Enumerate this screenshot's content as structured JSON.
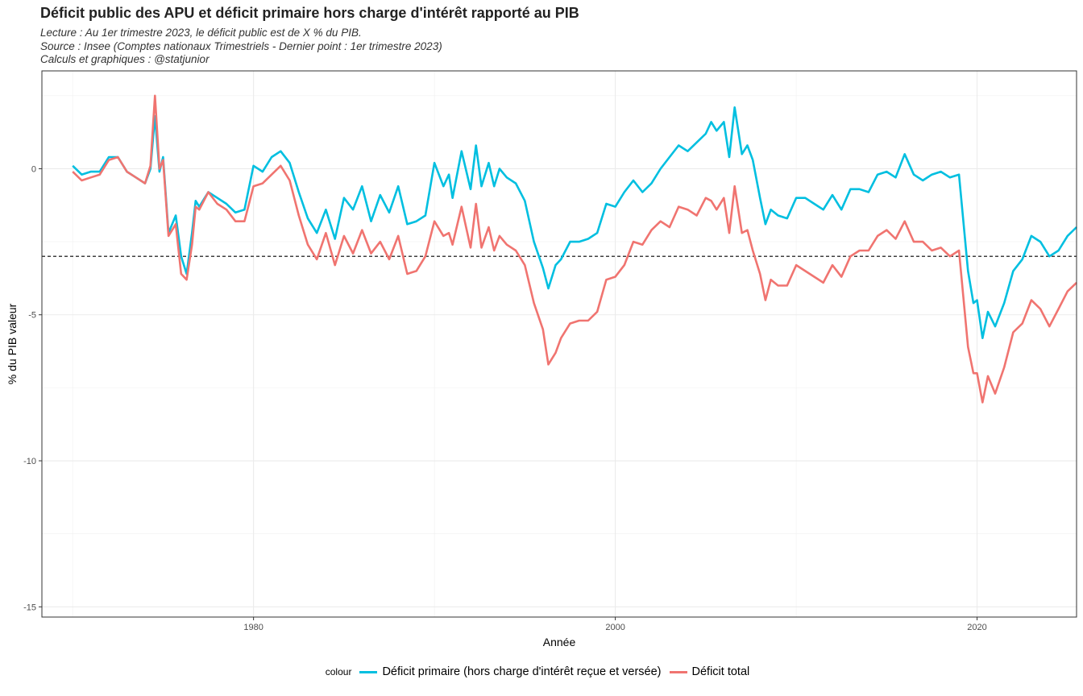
{
  "header": {
    "title": "Déficit public des APU et déficit primaire hors charge d'intérêt rapporté au PIB",
    "subtitle_lines": [
      "Lecture : Au 1er trimestre 2023, le déficit public est de X % du PIB.",
      "Source : Insee (Comptes nationaux Trimestriels - Dernier point : 1er trimestre 2023)",
      "Calculs et graphiques : @statjunior"
    ]
  },
  "legend": {
    "title": "colour",
    "entries": [
      {
        "label": "Déficit primaire (hors charge d'intérêt reçue et versée)",
        "color": "#00bfe0"
      },
      {
        "label": "Déficit total",
        "color": "#f07470"
      }
    ]
  },
  "chart_data": {
    "type": "line",
    "xlabel": "Année",
    "ylabel": "% du PIB valeur",
    "xlim": [
      1968.3,
      2025.5
    ],
    "ylim": [
      -15.35,
      3.35
    ],
    "x_ticks": [
      1980,
      2000,
      2020
    ],
    "y_ticks": [
      0,
      -5,
      -10,
      -15
    ],
    "reference_line": {
      "y": -3,
      "style": "dashed",
      "color": "#000000"
    },
    "grid": true,
    "legend_position": "bottom",
    "series": [
      {
        "name": "Déficit primaire (hors charge d'intérêt reçue et versée)",
        "color": "#00bfe0",
        "points": [
          [
            1970.0,
            0.1
          ],
          [
            1970.5,
            -0.2
          ],
          [
            1971.0,
            -0.1
          ],
          [
            1971.5,
            -0.1
          ],
          [
            1972.0,
            0.4
          ],
          [
            1972.5,
            0.4
          ],
          [
            1973.0,
            -0.1
          ],
          [
            1973.5,
            -0.3
          ],
          [
            1974.0,
            -0.5
          ],
          [
            1974.3,
            0.0
          ],
          [
            1974.55,
            1.8
          ],
          [
            1974.8,
            -0.1
          ],
          [
            1975.0,
            0.4
          ],
          [
            1975.3,
            -2.2
          ],
          [
            1975.7,
            -1.6
          ],
          [
            1976.0,
            -3.0
          ],
          [
            1976.3,
            -3.6
          ],
          [
            1976.6,
            -2.2
          ],
          [
            1976.8,
            -1.1
          ],
          [
            1977.0,
            -1.3
          ],
          [
            1977.5,
            -0.8
          ],
          [
            1978.0,
            -1.0
          ],
          [
            1978.5,
            -1.2
          ],
          [
            1979.0,
            -1.5
          ],
          [
            1979.5,
            -1.4
          ],
          [
            1980.0,
            0.1
          ],
          [
            1980.5,
            -0.1
          ],
          [
            1981.0,
            0.4
          ],
          [
            1981.5,
            0.6
          ],
          [
            1982.0,
            0.2
          ],
          [
            1982.5,
            -0.8
          ],
          [
            1983.0,
            -1.7
          ],
          [
            1983.5,
            -2.2
          ],
          [
            1984.0,
            -1.4
          ],
          [
            1984.5,
            -2.4
          ],
          [
            1985.0,
            -1.0
          ],
          [
            1985.5,
            -1.4
          ],
          [
            1986.0,
            -0.6
          ],
          [
            1986.5,
            -1.8
          ],
          [
            1987.0,
            -0.9
          ],
          [
            1987.5,
            -1.5
          ],
          [
            1988.0,
            -0.6
          ],
          [
            1988.5,
            -1.9
          ],
          [
            1989.0,
            -1.8
          ],
          [
            1989.5,
            -1.6
          ],
          [
            1990.0,
            0.2
          ],
          [
            1990.5,
            -0.6
          ],
          [
            1990.8,
            -0.2
          ],
          [
            1991.0,
            -1.0
          ],
          [
            1991.5,
            0.6
          ],
          [
            1992.0,
            -0.7
          ],
          [
            1992.3,
            0.8
          ],
          [
            1992.6,
            -0.6
          ],
          [
            1993.0,
            0.2
          ],
          [
            1993.3,
            -0.6
          ],
          [
            1993.6,
            0.0
          ],
          [
            1994.0,
            -0.3
          ],
          [
            1994.5,
            -0.5
          ],
          [
            1995.0,
            -1.1
          ],
          [
            1995.5,
            -2.5
          ],
          [
            1996.0,
            -3.4
          ],
          [
            1996.3,
            -4.1
          ],
          [
            1996.7,
            -3.3
          ],
          [
            1997.0,
            -3.1
          ],
          [
            1997.5,
            -2.5
          ],
          [
            1998.0,
            -2.5
          ],
          [
            1998.5,
            -2.4
          ],
          [
            1999.0,
            -2.2
          ],
          [
            1999.5,
            -1.2
          ],
          [
            2000.0,
            -1.3
          ],
          [
            2000.5,
            -0.8
          ],
          [
            2001.0,
            -0.4
          ],
          [
            2001.5,
            -0.8
          ],
          [
            2002.0,
            -0.5
          ],
          [
            2002.5,
            0.0
          ],
          [
            2003.0,
            0.4
          ],
          [
            2003.5,
            0.8
          ],
          [
            2004.0,
            0.6
          ],
          [
            2004.5,
            0.9
          ],
          [
            2005.0,
            1.2
          ],
          [
            2005.3,
            1.6
          ],
          [
            2005.6,
            1.3
          ],
          [
            2006.0,
            1.6
          ],
          [
            2006.3,
            0.4
          ],
          [
            2006.6,
            2.1
          ],
          [
            2007.0,
            0.5
          ],
          [
            2007.3,
            0.8
          ],
          [
            2007.6,
            0.3
          ],
          [
            2008.0,
            -1.0
          ],
          [
            2008.3,
            -1.9
          ],
          [
            2008.6,
            -1.4
          ],
          [
            2009.0,
            -1.6
          ],
          [
            2009.5,
            -1.7
          ],
          [
            2010.0,
            -1.0
          ],
          [
            2010.5,
            -1.0
          ],
          [
            2011.0,
            -1.2
          ],
          [
            2011.5,
            -1.4
          ],
          [
            2012.0,
            -0.9
          ],
          [
            2012.5,
            -1.4
          ],
          [
            2013.0,
            -0.7
          ],
          [
            2013.5,
            -0.7
          ],
          [
            2014.0,
            -0.8
          ],
          [
            2014.5,
            -0.2
          ],
          [
            2015.0,
            -0.1
          ],
          [
            2015.5,
            -0.3
          ],
          [
            2016.0,
            0.5
          ],
          [
            2016.5,
            -0.2
          ],
          [
            2017.0,
            -0.4
          ],
          [
            2017.5,
            -0.2
          ],
          [
            2018.0,
            -0.1
          ],
          [
            2018.5,
            -0.3
          ],
          [
            2019.0,
            -0.2
          ],
          [
            2019.5,
            -3.5
          ],
          [
            2019.8,
            -4.6
          ],
          [
            2020.0,
            -4.5
          ],
          [
            2020.3,
            -5.8
          ],
          [
            2020.6,
            -4.9
          ],
          [
            2021.0,
            -5.4
          ],
          [
            2021.5,
            -4.6
          ],
          [
            2022.0,
            -3.5
          ],
          [
            2022.5,
            -3.1
          ],
          [
            2023.0,
            -2.3
          ],
          [
            2023.5,
            -2.5
          ],
          [
            2024.0,
            -3.0
          ],
          [
            2024.5,
            -2.8
          ],
          [
            2025.0,
            -2.3
          ],
          [
            2025.5,
            -2.0
          ]
        ]
      },
      {
        "name": "Déficit total",
        "color": "#f07470",
        "points": [
          [
            1970.0,
            -0.1
          ],
          [
            1970.5,
            -0.4
          ],
          [
            1971.0,
            -0.3
          ],
          [
            1971.5,
            -0.2
          ],
          [
            1972.0,
            0.3
          ],
          [
            1972.5,
            0.4
          ],
          [
            1973.0,
            -0.1
          ],
          [
            1973.5,
            -0.3
          ],
          [
            1974.0,
            -0.5
          ],
          [
            1974.3,
            0.1
          ],
          [
            1974.55,
            2.5
          ],
          [
            1974.8,
            0.0
          ],
          [
            1975.0,
            0.3
          ],
          [
            1975.3,
            -2.3
          ],
          [
            1975.7,
            -1.9
          ],
          [
            1976.0,
            -3.6
          ],
          [
            1976.3,
            -3.8
          ],
          [
            1976.6,
            -2.6
          ],
          [
            1976.8,
            -1.3
          ],
          [
            1977.0,
            -1.4
          ],
          [
            1977.5,
            -0.8
          ],
          [
            1978.0,
            -1.2
          ],
          [
            1978.5,
            -1.4
          ],
          [
            1979.0,
            -1.8
          ],
          [
            1979.5,
            -1.8
          ],
          [
            1980.0,
            -0.6
          ],
          [
            1980.5,
            -0.5
          ],
          [
            1981.0,
            -0.2
          ],
          [
            1981.5,
            0.1
          ],
          [
            1982.0,
            -0.4
          ],
          [
            1982.5,
            -1.6
          ],
          [
            1983.0,
            -2.6
          ],
          [
            1983.5,
            -3.1
          ],
          [
            1984.0,
            -2.2
          ],
          [
            1984.5,
            -3.3
          ],
          [
            1985.0,
            -2.3
          ],
          [
            1985.5,
            -2.9
          ],
          [
            1986.0,
            -2.1
          ],
          [
            1986.5,
            -2.9
          ],
          [
            1987.0,
            -2.5
          ],
          [
            1987.5,
            -3.1
          ],
          [
            1988.0,
            -2.3
          ],
          [
            1988.5,
            -3.6
          ],
          [
            1989.0,
            -3.5
          ],
          [
            1989.5,
            -3.0
          ],
          [
            1990.0,
            -1.8
          ],
          [
            1990.5,
            -2.3
          ],
          [
            1990.8,
            -2.2
          ],
          [
            1991.0,
            -2.6
          ],
          [
            1991.5,
            -1.3
          ],
          [
            1992.0,
            -2.7
          ],
          [
            1992.3,
            -1.2
          ],
          [
            1992.6,
            -2.7
          ],
          [
            1993.0,
            -2.0
          ],
          [
            1993.3,
            -2.8
          ],
          [
            1993.6,
            -2.3
          ],
          [
            1994.0,
            -2.6
          ],
          [
            1994.5,
            -2.8
          ],
          [
            1995.0,
            -3.3
          ],
          [
            1995.5,
            -4.6
          ],
          [
            1996.0,
            -5.5
          ],
          [
            1996.3,
            -6.7
          ],
          [
            1996.7,
            -6.3
          ],
          [
            1997.0,
            -5.8
          ],
          [
            1997.5,
            -5.3
          ],
          [
            1998.0,
            -5.2
          ],
          [
            1998.5,
            -5.2
          ],
          [
            1999.0,
            -4.9
          ],
          [
            1999.5,
            -3.8
          ],
          [
            2000.0,
            -3.7
          ],
          [
            2000.5,
            -3.3
          ],
          [
            2001.0,
            -2.5
          ],
          [
            2001.5,
            -2.6
          ],
          [
            2002.0,
            -2.1
          ],
          [
            2002.5,
            -1.8
          ],
          [
            2003.0,
            -2.0
          ],
          [
            2003.5,
            -1.3
          ],
          [
            2004.0,
            -1.4
          ],
          [
            2004.5,
            -1.6
          ],
          [
            2005.0,
            -1.0
          ],
          [
            2005.3,
            -1.1
          ],
          [
            2005.6,
            -1.4
          ],
          [
            2006.0,
            -1.0
          ],
          [
            2006.3,
            -2.2
          ],
          [
            2006.6,
            -0.6
          ],
          [
            2007.0,
            -2.2
          ],
          [
            2007.3,
            -2.1
          ],
          [
            2007.6,
            -2.8
          ],
          [
            2008.0,
            -3.6
          ],
          [
            2008.3,
            -4.5
          ],
          [
            2008.6,
            -3.8
          ],
          [
            2009.0,
            -4.0
          ],
          [
            2009.5,
            -4.0
          ],
          [
            2010.0,
            -3.3
          ],
          [
            2010.5,
            -3.5
          ],
          [
            2011.0,
            -3.7
          ],
          [
            2011.5,
            -3.9
          ],
          [
            2012.0,
            -3.3
          ],
          [
            2012.5,
            -3.7
          ],
          [
            2013.0,
            -3.0
          ],
          [
            2013.5,
            -2.8
          ],
          [
            2014.0,
            -2.8
          ],
          [
            2014.5,
            -2.3
          ],
          [
            2015.0,
            -2.1
          ],
          [
            2015.5,
            -2.4
          ],
          [
            2016.0,
            -1.8
          ],
          [
            2016.5,
            -2.5
          ],
          [
            2017.0,
            -2.5
          ],
          [
            2017.5,
            -2.8
          ],
          [
            2018.0,
            -2.7
          ],
          [
            2018.5,
            -3.0
          ],
          [
            2019.0,
            -2.8
          ],
          [
            2019.5,
            -6.1
          ],
          [
            2019.8,
            -7.0
          ],
          [
            2020.0,
            -7.0
          ],
          [
            2020.3,
            -8.0
          ],
          [
            2020.6,
            -7.1
          ],
          [
            2021.0,
            -7.7
          ],
          [
            2021.5,
            -6.8
          ],
          [
            2022.0,
            -5.6
          ],
          [
            2022.5,
            -5.3
          ],
          [
            2023.0,
            -4.5
          ],
          [
            2023.5,
            -4.8
          ],
          [
            2024.0,
            -5.4
          ],
          [
            2024.5,
            -4.8
          ],
          [
            2025.0,
            -4.2
          ],
          [
            2025.5,
            -3.9
          ]
        ]
      }
    ]
  }
}
